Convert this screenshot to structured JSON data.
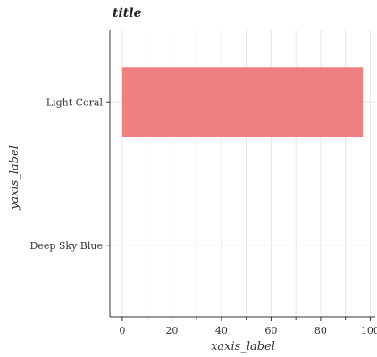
{
  "chart_data": {
    "type": "bar",
    "orientation": "horizontal",
    "title": "title",
    "xlabel": "xaxis_label",
    "ylabel": "yaxis_label",
    "categories": [
      "Deep Sky Blue",
      "Light Coral"
    ],
    "values": [
      0,
      97
    ],
    "colors": [
      "#00bfff",
      "#f08080"
    ],
    "xlim": [
      -5,
      102
    ],
    "xticks": [
      0,
      20,
      40,
      60,
      80,
      100
    ],
    "grid": true
  }
}
